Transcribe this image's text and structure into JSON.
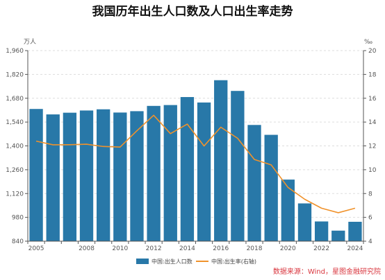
{
  "chart_data": {
    "type": "bar",
    "title": "我国历年出生人口数及人口出生率走势",
    "left_unit": "万人",
    "right_unit": "‰",
    "x": [
      2005,
      2006,
      2007,
      2008,
      2009,
      2010,
      2011,
      2012,
      2013,
      2014,
      2015,
      2016,
      2017,
      2018,
      2019,
      2020,
      2021,
      2022,
      2023,
      2024
    ],
    "x_tick_labels": [
      {
        "x": 2005,
        "label": "2005"
      },
      {
        "x": 2008,
        "label": "2008"
      },
      {
        "x": 2010,
        "label": "2010"
      },
      {
        "x": 2012,
        "label": "2012"
      },
      {
        "x": 2014,
        "label": "2014"
      },
      {
        "x": 2016,
        "label": "2016"
      },
      {
        "x": 2018,
        "label": "2018"
      },
      {
        "x": 2020,
        "label": "2020"
      },
      {
        "x": 2022,
        "label": "2022"
      },
      {
        "x": 2024,
        "label": "2024"
      }
    ],
    "y_left": {
      "min": 840,
      "max": 1960,
      "ticks": [
        840,
        980,
        1120,
        1260,
        1400,
        1540,
        1680,
        1820,
        1960
      ],
      "tick_labels": [
        "840",
        "980",
        "1,120",
        "1,260",
        "1,400",
        "1,540",
        "1,680",
        "1,820",
        "1,960"
      ]
    },
    "y_right": {
      "min": 4,
      "max": 20,
      "ticks": [
        4,
        6,
        8,
        10,
        12,
        14,
        16,
        18,
        20
      ],
      "tick_labels": [
        "4",
        "6",
        "8",
        "10",
        "12",
        "14",
        "16",
        "18",
        "20"
      ]
    },
    "series": [
      {
        "name": "中国:出生人口数",
        "type": "bar",
        "axis": "left",
        "color": "#2878a8",
        "values": [
          1617,
          1585,
          1595,
          1608,
          1615,
          1596,
          1604,
          1635,
          1640,
          1687,
          1655,
          1786,
          1723,
          1523,
          1465,
          1202,
          1062,
          956,
          902,
          954
        ]
      },
      {
        "name": "中国:出生率(右轴)",
        "type": "line",
        "axis": "right",
        "color": "#f0922b",
        "values": [
          12.4,
          12.09,
          12.1,
          12.14,
          11.95,
          11.9,
          13.27,
          14.57,
          13.03,
          13.83,
          11.99,
          13.57,
          12.64,
          10.86,
          10.41,
          8.52,
          7.52,
          6.77,
          6.39,
          6.77
        ]
      }
    ],
    "grid": true,
    "legend": "bottom-center"
  },
  "source_note": "数据来源：Wind，星图金融研究院"
}
